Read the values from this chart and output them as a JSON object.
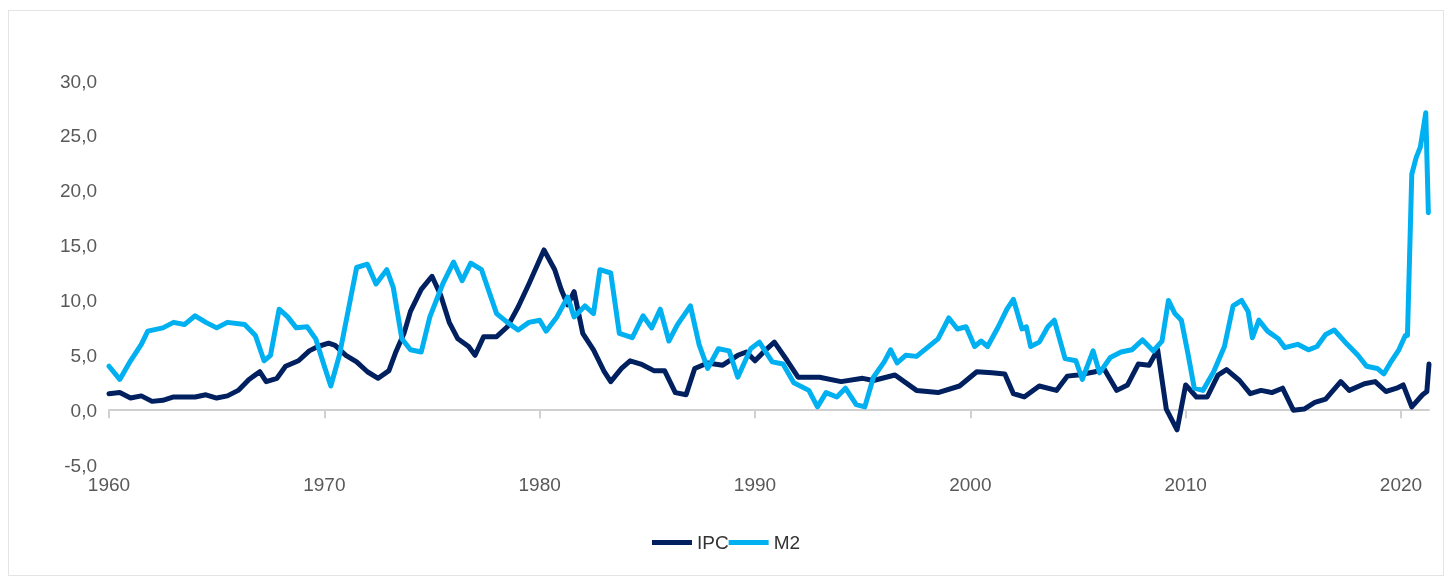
{
  "chart_data": {
    "type": "line",
    "xlim": [
      1960,
      2021.3
    ],
    "xticks": [
      1960,
      1970,
      1980,
      1990,
      2000,
      2010,
      2020
    ],
    "ylim": [
      -5,
      30
    ],
    "yticks": [
      {
        "value": -5,
        "label": "-5,0"
      },
      {
        "value": 0,
        "label": "0,0"
      },
      {
        "value": 5,
        "label": "5,0"
      },
      {
        "value": 10,
        "label": "10,0"
      },
      {
        "value": 15,
        "label": "15,0"
      },
      {
        "value": 20,
        "label": "20,0"
      },
      {
        "value": 25,
        "label": "25,0"
      },
      {
        "value": 30,
        "label": "30,0"
      }
    ],
    "legend": "bottom",
    "series": [
      {
        "name": "IPC",
        "color": "#002060",
        "x": [
          1960,
          1960.5,
          1961,
          1961.5,
          1962,
          1962.5,
          1963,
          1964,
          1964.5,
          1965,
          1965.5,
          1966,
          1966.5,
          1967,
          1967.3,
          1967.8,
          1968.2,
          1968.8,
          1969.3,
          1969.7,
          1970.2,
          1970.5,
          1971,
          1971.5,
          1972,
          1972.5,
          1973,
          1973.3,
          1973.7,
          1974,
          1974.5,
          1975,
          1975.4,
          1975.8,
          1976.2,
          1976.7,
          1977,
          1977.4,
          1978,
          1978.5,
          1979,
          1979.5,
          1980.2,
          1980.7,
          1981,
          1981.3,
          1981.6,
          1982,
          1982.5,
          1983,
          1983.3,
          1983.8,
          1984.2,
          1984.7,
          1985.3,
          1985.8,
          1986.3,
          1986.8,
          1987.2,
          1987.8,
          1988.5,
          1989.2,
          1989.6,
          1990,
          1990.5,
          1990.9,
          1991.5,
          1992,
          1993,
          1994,
          1995,
          1995.5,
          1996.5,
          1997.5,
          1998.5,
          1999.5,
          2000.3,
          2001,
          2001.6,
          2002,
          2002.5,
          2003.2,
          2004,
          2004.5,
          2005,
          2005.8,
          2006.2,
          2006.8,
          2007.3,
          2007.8,
          2008.3,
          2008.7,
          2009.1,
          2009.6,
          2010,
          2010.5,
          2011,
          2011.5,
          2011.9,
          2012.5,
          2013,
          2013.5,
          2014,
          2014.5,
          2015,
          2015.5,
          2016,
          2016.5,
          2017.2,
          2017.6,
          2018.3,
          2018.8,
          2019.3,
          2019.8,
          2020.1,
          2020.5,
          2021,
          2021.2,
          2021.3
        ],
        "values": [
          1.5,
          1.6,
          1.1,
          1.3,
          0.8,
          0.9,
          1.2,
          1.2,
          1.4,
          1.1,
          1.3,
          1.8,
          2.8,
          3.5,
          2.6,
          2.9,
          4.0,
          4.5,
          5.4,
          5.8,
          6.1,
          5.9,
          5.0,
          4.4,
          3.5,
          2.9,
          3.6,
          5.2,
          7.0,
          9.0,
          11.0,
          12.2,
          10.5,
          8.0,
          6.5,
          5.8,
          5.0,
          6.7,
          6.7,
          7.6,
          9.4,
          11.5,
          14.6,
          12.8,
          11.0,
          9.6,
          10.8,
          7.0,
          5.5,
          3.5,
          2.6,
          3.8,
          4.5,
          4.2,
          3.6,
          3.6,
          1.6,
          1.4,
          3.8,
          4.3,
          4.1,
          5.0,
          5.3,
          4.5,
          5.5,
          6.2,
          4.5,
          3.0,
          3.0,
          2.6,
          2.9,
          2.7,
          3.2,
          1.8,
          1.6,
          2.2,
          3.5,
          3.4,
          3.3,
          1.5,
          1.2,
          2.2,
          1.8,
          3.1,
          3.2,
          3.5,
          3.8,
          1.8,
          2.3,
          4.2,
          4.1,
          5.5,
          0.1,
          -1.8,
          2.3,
          1.2,
          1.2,
          3.2,
          3.7,
          2.7,
          1.5,
          1.8,
          1.6,
          2.0,
          0.0,
          0.1,
          0.7,
          1.0,
          2.6,
          1.8,
          2.4,
          2.6,
          1.7,
          2.0,
          2.3,
          0.3,
          1.4,
          1.7,
          4.2
        ]
      },
      {
        "name": "M2",
        "color": "#00b0f0",
        "x": [
          1960,
          1960.5,
          1961,
          1961.5,
          1961.8,
          1962.5,
          1963,
          1963.5,
          1964,
          1964.5,
          1965,
          1965.5,
          1966.3,
          1966.8,
          1967.2,
          1967.5,
          1967.9,
          1968.3,
          1968.7,
          1969.2,
          1969.6,
          1970,
          1970.3,
          1970.7,
          1971,
          1971.5,
          1972,
          1972.4,
          1972.9,
          1973.2,
          1973.6,
          1974,
          1974.5,
          1974.9,
          1975.5,
          1976,
          1976.4,
          1976.8,
          1977.3,
          1978,
          1978.5,
          1979,
          1979.5,
          1980,
          1980.3,
          1980.8,
          1981.3,
          1981.6,
          1982.1,
          1982.5,
          1982.8,
          1983.3,
          1983.7,
          1984.3,
          1984.8,
          1985.2,
          1985.6,
          1986,
          1986.4,
          1987,
          1987.4,
          1987.8,
          1988.3,
          1988.8,
          1989.2,
          1989.8,
          1990.2,
          1990.8,
          1991.3,
          1991.8,
          1992.5,
          1992.9,
          1993.3,
          1993.8,
          1994.2,
          1994.7,
          1995.1,
          1995.5,
          1996,
          1996.3,
          1996.6,
          1997,
          1997.5,
          1998,
          1998.5,
          1999,
          1999.4,
          1999.8,
          2000.2,
          2000.5,
          2000.8,
          2001.3,
          2001.7,
          2002,
          2002.4,
          2002.6,
          2002.8,
          2003.2,
          2003.6,
          2003.9,
          2004.4,
          2004.9,
          2005.2,
          2005.7,
          2006,
          2006.5,
          2007,
          2007.5,
          2008,
          2008.5,
          2008.9,
          2009.2,
          2009.5,
          2009.8,
          2010.1,
          2010.4,
          2010.8,
          2011.3,
          2011.8,
          2012.2,
          2012.6,
          2012.9,
          2013.1,
          2013.4,
          2013.8,
          2014.3,
          2014.6,
          2015.2,
          2015.7,
          2016.1,
          2016.5,
          2016.9,
          2017.5,
          2018,
          2018.4,
          2018.9,
          2019.2,
          2019.5,
          2019.9,
          2020.2,
          2020.3,
          2020.5,
          2020.7,
          2020.9,
          2021.15,
          2021.27
        ],
        "values": [
          4.0,
          2.8,
          4.5,
          6.0,
          7.2,
          7.5,
          8.0,
          7.8,
          8.6,
          8.0,
          7.5,
          8.0,
          7.8,
          6.8,
          4.5,
          5.0,
          9.2,
          8.5,
          7.5,
          7.6,
          6.5,
          4.0,
          2.2,
          5.0,
          8.0,
          13.0,
          13.3,
          11.5,
          12.8,
          11.2,
          6.5,
          5.5,
          5.3,
          8.5,
          11.5,
          13.5,
          11.8,
          13.4,
          12.8,
          8.8,
          8.0,
          7.3,
          8.0,
          8.2,
          7.2,
          8.5,
          10.3,
          8.5,
          9.5,
          8.8,
          12.8,
          12.5,
          7.0,
          6.6,
          8.6,
          7.5,
          9.2,
          6.3,
          7.8,
          9.5,
          6.0,
          3.8,
          5.6,
          5.4,
          3.0,
          5.6,
          6.2,
          4.4,
          4.2,
          2.5,
          1.8,
          0.3,
          1.6,
          1.2,
          2.0,
          0.5,
          0.3,
          3.0,
          4.4,
          5.5,
          4.3,
          5.0,
          4.9,
          5.7,
          6.5,
          8.4,
          7.4,
          7.6,
          5.8,
          6.3,
          5.8,
          7.6,
          9.2,
          10.1,
          7.4,
          7.6,
          5.8,
          6.2,
          7.6,
          8.2,
          4.7,
          4.5,
          2.8,
          5.4,
          3.4,
          4.8,
          5.3,
          5.5,
          6.4,
          5.4,
          6.3,
          10.0,
          8.8,
          8.2,
          5.2,
          2.0,
          1.8,
          3.5,
          5.8,
          9.5,
          10.0,
          9.0,
          6.6,
          8.2,
          7.2,
          6.5,
          5.7,
          6.0,
          5.5,
          5.8,
          6.9,
          7.3,
          6.0,
          5.0,
          4.0,
          3.8,
          3.3,
          4.3,
          5.5,
          6.8,
          6.8,
          21.5,
          23.0,
          24.0,
          27.1,
          18.0
        ]
      }
    ]
  }
}
